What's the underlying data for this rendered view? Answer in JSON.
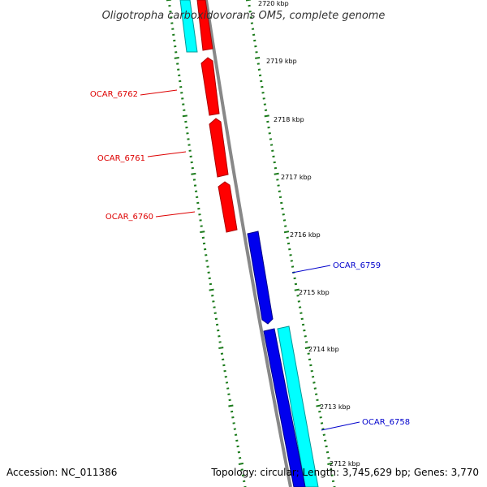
{
  "title": "Oligotropha carboxidovorans OM5, complete genome",
  "ticks": [
    "2720 kbp",
    "2719 kbp",
    "2718 kbp",
    "2717 kbp",
    "2716 kbp",
    "2715 kbp",
    "2714 kbp",
    "2713 kbp",
    "2712 kbp"
  ],
  "genes": [
    {
      "label": "OCAR_6762",
      "color": "#dd0000"
    },
    {
      "label": "OCAR_6761",
      "color": "#dd0000"
    },
    {
      "label": "OCAR_6760",
      "color": "#dd0000"
    },
    {
      "label": "OCAR_6759",
      "color": "#0000cc"
    },
    {
      "label": "OCAR_6758",
      "color": "#0000cc"
    }
  ],
  "colors": {
    "forward_cds": "#ff0000",
    "reverse_cds": "#0000ee",
    "feature": "#00ffff",
    "backbone": "#888888",
    "tick_marks": "#1a7a1a"
  },
  "footer": {
    "accession": "Accession: NC_011386",
    "stats": "Topology: circular; Length: 3,745,629 bp; Genes: 3,770"
  }
}
